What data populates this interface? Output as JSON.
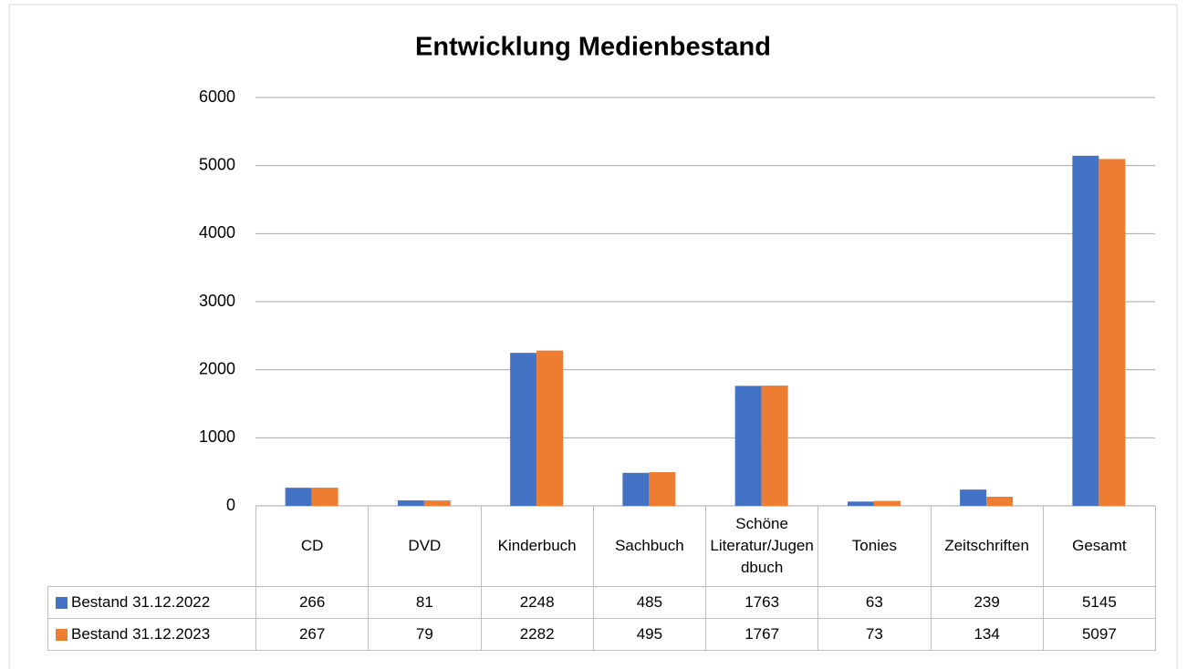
{
  "chart_data": {
    "type": "bar",
    "title": "Entwicklung Medienbestand",
    "categories": [
      "CD",
      "DVD",
      "Kinderbuch",
      "Sachbuch",
      "Schöne Literatur/Jugendbuch",
      "Tonies",
      "Zeitschriften",
      "Gesamt"
    ],
    "series": [
      {
        "name": "Bestand 31.12.2022",
        "color": "#4472c4",
        "values": [
          266,
          81,
          2248,
          485,
          1763,
          63,
          239,
          5145
        ]
      },
      {
        "name": "Bestand 31.12.2023",
        "color": "#ed7d31",
        "values": [
          267,
          79,
          2282,
          495,
          1767,
          73,
          134,
          5097
        ]
      }
    ],
    "ylim": [
      0,
      6000
    ],
    "yticks": [
      0,
      1000,
      2000,
      3000,
      4000,
      5000,
      6000
    ],
    "grid": true
  }
}
